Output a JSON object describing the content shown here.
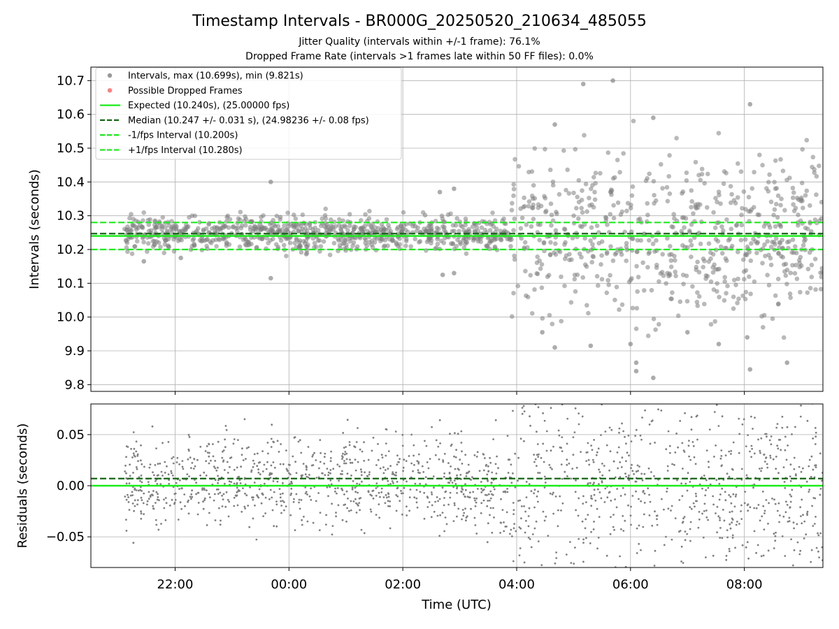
{
  "chart_data": {
    "type": "scatter",
    "title": "Timestamp Intervals - BR000G_20250520_210634_485055",
    "subtitle_lines": [
      "Jitter Quality (intervals within +/-1 frame): 76.1%",
      "Dropped Frame Rate (intervals >1 frames late within 50 FF files): 0.0%"
    ],
    "xlabel": "Time (UTC)",
    "x_unit": "hours (UTC, 24 = midnight of 2025-05-21)",
    "xlim": [
      20.52,
      33.38
    ],
    "x_ticks": [
      {
        "value": 22,
        "label": "22:00"
      },
      {
        "value": 24,
        "label": "00:00"
      },
      {
        "value": 26,
        "label": "02:00"
      },
      {
        "value": 28,
        "label": "04:00"
      },
      {
        "value": 30,
        "label": "06:00"
      },
      {
        "value": 32,
        "label": "08:00"
      }
    ],
    "data_start": 21.11,
    "data_end": 33.38,
    "instability_start": 27.9,
    "grid": true,
    "colors": {
      "points": "#808080",
      "dropped": "#ff6060",
      "expected": "#1aed1a",
      "median": "#136813",
      "fps_bounds": "#1aed1a"
    },
    "panels": [
      {
        "name": "intervals",
        "ylabel": "Intervals (seconds)",
        "ylim": [
          9.78,
          10.74
        ],
        "y_ticks": [
          {
            "value": 9.8,
            "label": "9.8"
          },
          {
            "value": 9.9,
            "label": "9.9"
          },
          {
            "value": 10.0,
            "label": "10.0"
          },
          {
            "value": 10.1,
            "label": "10.1"
          },
          {
            "value": 10.2,
            "label": "10.2"
          },
          {
            "value": 10.3,
            "label": "10.3"
          },
          {
            "value": 10.4,
            "label": "10.4"
          },
          {
            "value": 10.5,
            "label": "10.5"
          },
          {
            "value": 10.6,
            "label": "10.6"
          },
          {
            "value": 10.7,
            "label": "10.7"
          }
        ],
        "expected": 10.24,
        "median": 10.247,
        "lower_bound": 10.2,
        "upper_bound": 10.28,
        "stable_spread": 0.025,
        "unstable_spread": 0.12,
        "outliers": [
          {
            "x": 23.68,
            "y": 10.4
          },
          {
            "x": 23.68,
            "y": 10.115
          },
          {
            "x": 26.65,
            "y": 10.37
          },
          {
            "x": 26.9,
            "y": 10.38
          },
          {
            "x": 26.7,
            "y": 10.125
          },
          {
            "x": 26.9,
            "y": 10.13
          },
          {
            "x": 21.45,
            "y": 10.165
          },
          {
            "x": 22.1,
            "y": 10.175
          },
          {
            "x": 29.69,
            "y": 10.7
          },
          {
            "x": 29.17,
            "y": 10.69
          },
          {
            "x": 32.1,
            "y": 10.63
          },
          {
            "x": 30.4,
            "y": 9.82
          },
          {
            "x": 30.1,
            "y": 9.84
          },
          {
            "x": 30.1,
            "y": 9.865
          },
          {
            "x": 32.1,
            "y": 9.845
          },
          {
            "x": 32.75,
            "y": 9.865
          },
          {
            "x": 28.67,
            "y": 9.91
          },
          {
            "x": 29.3,
            "y": 9.915
          },
          {
            "x": 30.0,
            "y": 9.92
          },
          {
            "x": 31.55,
            "y": 9.92
          },
          {
            "x": 32.05,
            "y": 9.94
          },
          {
            "x": 28.45,
            "y": 9.955
          },
          {
            "x": 31.0,
            "y": 9.955
          },
          {
            "x": 28.67,
            "y": 10.57
          },
          {
            "x": 30.4,
            "y": 10.59
          }
        ]
      },
      {
        "name": "residuals",
        "ylabel": "Residuals (seconds)",
        "ylim": [
          -0.08,
          0.08
        ],
        "y_ticks": [
          {
            "value": -0.05,
            "label": "−0.05"
          },
          {
            "value": 0.0,
            "label": "0.00"
          },
          {
            "value": 0.05,
            "label": "0.05"
          }
        ],
        "zero_line": 0.0,
        "median_offset": 0.007,
        "stable_spread": 0.022,
        "unstable_spread": 0.045
      }
    ],
    "legend": {
      "position": "upper-left",
      "entries": [
        {
          "label": "Intervals, max (10.699s), min (9.821s)",
          "marker": "dot",
          "color": "#808080"
        },
        {
          "label": "Possible Dropped Frames",
          "marker": "dot",
          "color": "#ff6060"
        },
        {
          "label": "Expected (10.240s), (25.00000 fps)",
          "marker": "solid",
          "color": "#1aed1a"
        },
        {
          "label": "Median (10.247 +/- 0.031 s), (24.98236 +/- 0.08 fps)",
          "marker": "dashed",
          "color": "#136813"
        },
        {
          "label": "-1/fps Interval (10.200s)",
          "marker": "dashed",
          "color": "#1aed1a"
        },
        {
          "label": "+1/fps Interval (10.280s)",
          "marker": "dashed",
          "color": "#1aed1a"
        }
      ]
    }
  }
}
